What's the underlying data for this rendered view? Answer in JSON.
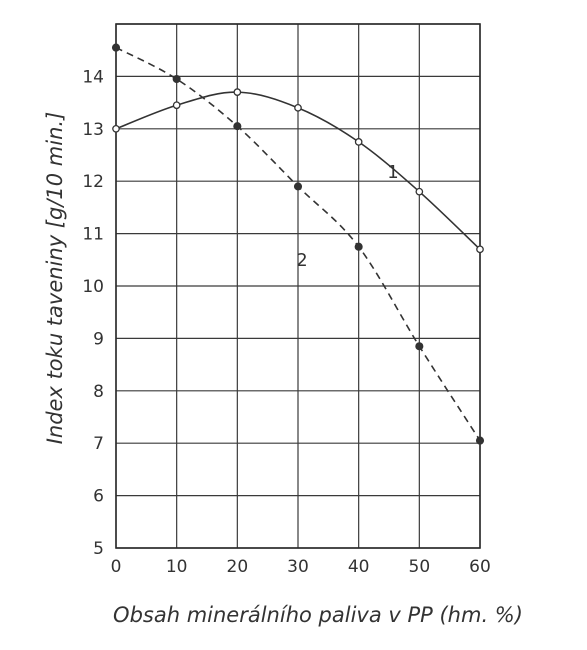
{
  "chart_data": {
    "type": "line",
    "title": "",
    "xlabel": "Obsah minerálního paliva v PP (hm. %)",
    "ylabel": "Index toku taveniny [g/10 min.]",
    "xlim": [
      0,
      60
    ],
    "ylim": [
      5,
      15
    ],
    "x_ticks": [
      "0",
      "10",
      "20",
      "30",
      "40",
      "50",
      "60"
    ],
    "y_ticks": [
      "5",
      "6",
      "7",
      "8",
      "9",
      "10",
      "11",
      "12",
      "13",
      "14"
    ],
    "grid": true,
    "series": [
      {
        "name": "1",
        "line_style": "solid",
        "marker": "open-circle",
        "color": "#333333",
        "x": [
          0,
          10,
          20,
          30,
          40,
          50,
          60
        ],
        "y": [
          13.0,
          13.45,
          13.7,
          13.4,
          12.75,
          11.8,
          10.7
        ]
      },
      {
        "name": "2",
        "line_style": "dashed",
        "marker": "filled-circle",
        "color": "#333333",
        "x": [
          0,
          10,
          20,
          30,
          40,
          50,
          60
        ],
        "y": [
          14.55,
          13.95,
          13.05,
          11.9,
          10.75,
          8.85,
          7.05
        ]
      }
    ]
  }
}
